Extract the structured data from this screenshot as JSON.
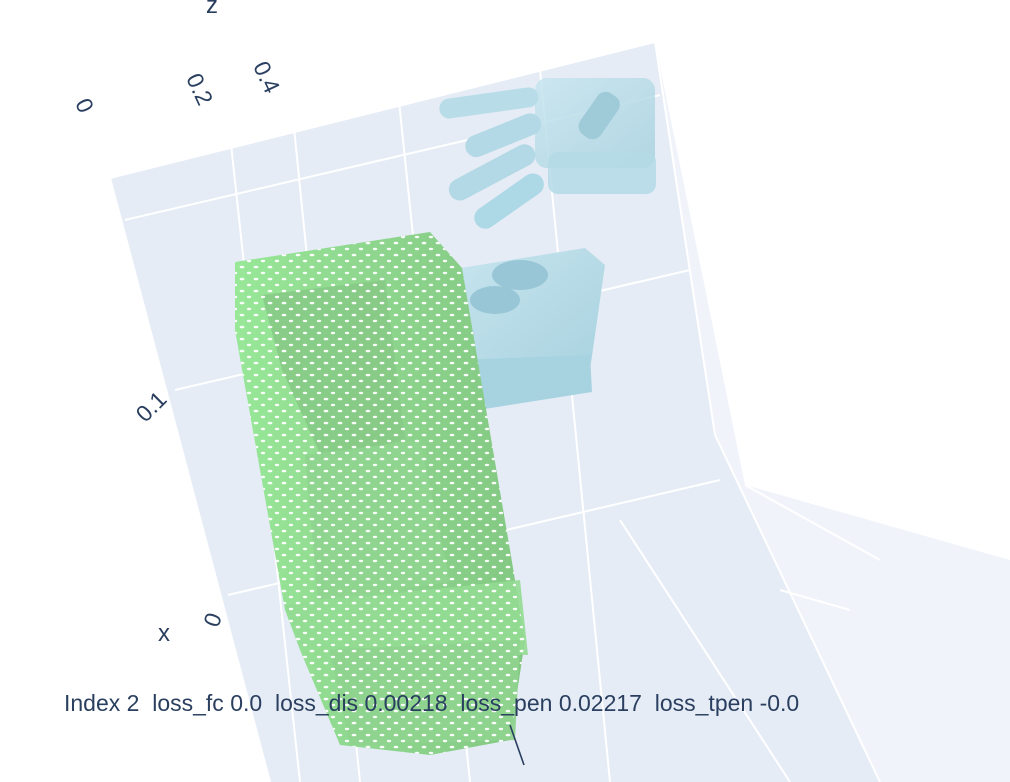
{
  "figure": {
    "caption": "Index 2  loss_fc 0.0  loss_dis 0.00218  loss_pen 0.02217  loss_tpen -0.0",
    "scene": {
      "background_color": "#e5ecf6",
      "grid_color": "#ffffff",
      "object_color": "#90ee90",
      "hand_color": "#add8e6",
      "axes": {
        "z": {
          "title": "z",
          "ticks": [
            "0",
            "0.2",
            "0.4"
          ]
        },
        "x": {
          "title": "x",
          "ticks": [
            "0.1",
            "0"
          ]
        }
      }
    }
  }
}
